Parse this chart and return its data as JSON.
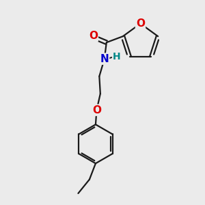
{
  "bg_color": "#ebebeb",
  "bond_color": "#1a1a1a",
  "oxygen_color": "#dd0000",
  "nitrogen_color": "#0000cc",
  "hydrogen_color": "#008888",
  "line_width": 1.6,
  "font_size_atom": 11,
  "font_size_H": 10,
  "figsize": [
    3.0,
    3.0
  ],
  "dpi": 100,
  "xlim": [
    1.0,
    9.0
  ],
  "ylim": [
    0.5,
    10.5
  ]
}
